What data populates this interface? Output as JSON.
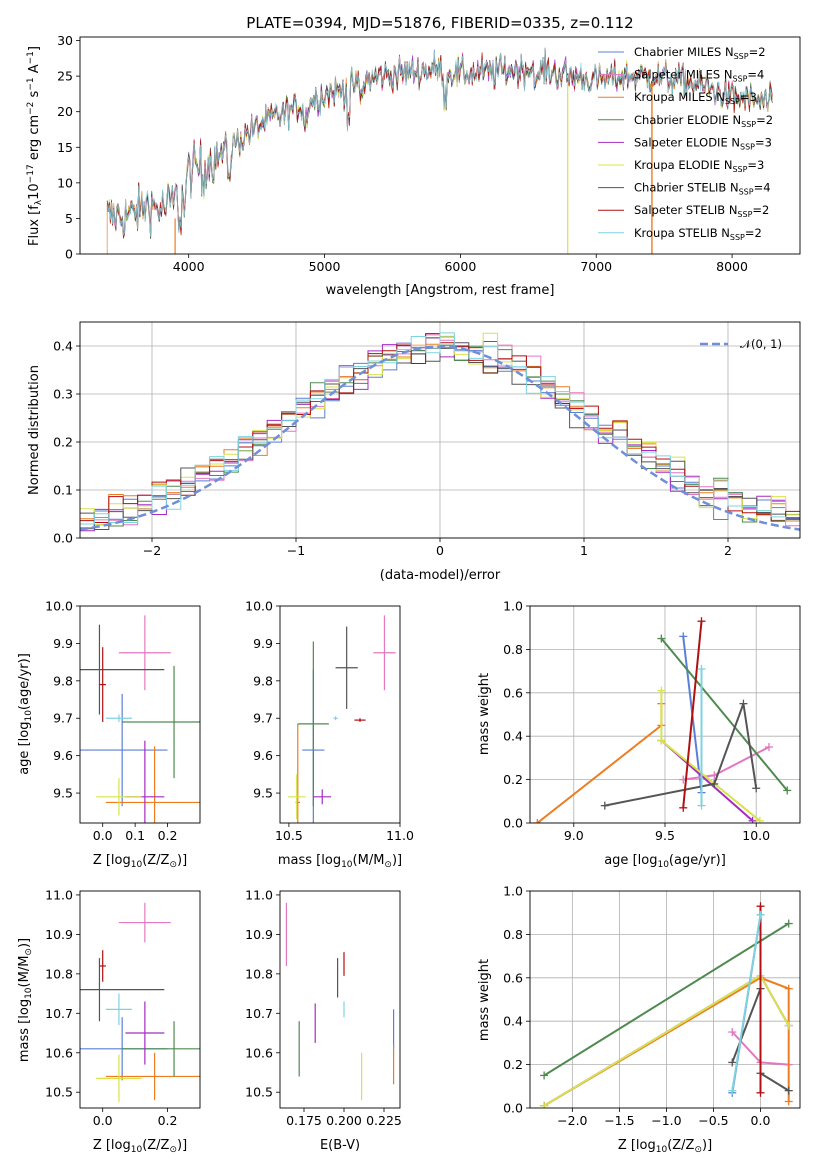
{
  "title": "PLATE=0394, MJD=51876, FIBERID=0335, z=0.112",
  "colors": {
    "Chabrier MILES": "#5b7fd6",
    "Salpeter MILES": "#e377c2",
    "Kroupa MILES": "#ee7d22",
    "Chabrier ELODIE": "#4f8a50",
    "Salpeter ELODIE": "#a52cc2",
    "Kroupa ELODIE": "#d8e34a",
    "Chabrier STELIB": "#555555",
    "Salpeter STELIB": "#b01010",
    "Kroupa STELIB": "#7fd3e0",
    "gaussian": "#6f8fd8"
  },
  "chart_data": [
    {
      "id": "spectrum",
      "type": "line",
      "title": "PLATE=0394, MJD=51876, FIBERID=0335, z=0.112",
      "xlabel": "wavelength [Angstrom, rest frame]",
      "ylabel_parts": [
        "Flux [f",
        "λ",
        "10",
        "−17",
        " erg cm",
        "−2",
        " s",
        "−1",
        " A",
        "−1",
        "]"
      ],
      "xlim": [
        3200,
        8500
      ],
      "ylim": [
        0,
        30.5
      ],
      "xticks": [
        4000,
        5000,
        6000,
        7000,
        8000
      ],
      "yticks": [
        0,
        5,
        10,
        15,
        20,
        25,
        30
      ],
      "continuum": [
        [
          3400,
          5.2
        ],
        [
          3600,
          5.6
        ],
        [
          3700,
          7
        ],
        [
          3800,
          6.2
        ],
        [
          3900,
          7.5
        ],
        [
          4000,
          11.5
        ],
        [
          4200,
          13.5
        ],
        [
          4400,
          16.5
        ],
        [
          4600,
          19
        ],
        [
          4800,
          20.5
        ],
        [
          5000,
          22.5
        ],
        [
          5200,
          23.5
        ],
        [
          5400,
          25
        ],
        [
          5600,
          25.5
        ],
        [
          5800,
          26
        ],
        [
          6000,
          25.3
        ],
        [
          6200,
          25.5
        ],
        [
          6400,
          26
        ],
        [
          6600,
          26
        ],
        [
          6800,
          25
        ],
        [
          7000,
          24.5
        ],
        [
          7200,
          25
        ],
        [
          7400,
          25
        ],
        [
          7600,
          24.5
        ],
        [
          7800,
          23.5
        ],
        [
          8000,
          22
        ],
        [
          8200,
          21.5
        ],
        [
          8300,
          21
        ]
      ],
      "series_names": [
        "Chabrier MILES",
        "Salpeter MILES",
        "Kroupa MILES",
        "Chabrier ELODIE",
        "Salpeter ELODIE",
        "Kroupa ELODIE",
        "Chabrier STELIB",
        "Salpeter STELIB",
        "Kroupa STELIB"
      ],
      "legend": [
        {
          "name": "Chabrier MILES",
          "nssp": "2"
        },
        {
          "name": "Salpeter MILES",
          "nssp": "4"
        },
        {
          "name": "Kroupa MILES",
          "nssp": "3"
        },
        {
          "name": "Chabrier ELODIE",
          "nssp": "2"
        },
        {
          "name": "Salpeter ELODIE",
          "nssp": "3"
        },
        {
          "name": "Kroupa ELODIE",
          "nssp": "3"
        },
        {
          "name": "Chabrier STELIB",
          "nssp": "4"
        },
        {
          "name": "Salpeter STELIB",
          "nssp": "2"
        },
        {
          "name": "Kroupa STELIB",
          "nssp": "2"
        }
      ],
      "legend_label": "N",
      "legend_sub": "SSP",
      "legend_placement": "right"
    },
    {
      "id": "residuals",
      "type": "line",
      "xlabel": "(data-model)/error",
      "ylabel": "Normed distribution",
      "xlim": [
        -2.5,
        2.5
      ],
      "ylim": [
        0,
        0.45
      ],
      "xticks": [
        -2,
        -1,
        0,
        1,
        2
      ],
      "xtick_labels": [
        "−2",
        "−1",
        "0",
        "1",
        "2"
      ],
      "yticks": [
        0,
        0.1,
        0.2,
        0.3,
        0.4
      ],
      "ytick_labels": [
        "0.0",
        "0.1",
        "0.2",
        "0.3",
        "0.4"
      ],
      "bin_width": 0.1,
      "grid": true,
      "legend_label": "𝒩(0, 1)",
      "legend_placement": "top-right"
    },
    {
      "id": "age-vs-Z",
      "type": "scatter",
      "xlabel_parts": [
        "Z [log",
        "10",
        "(Z/Z",
        "⊙",
        ")]"
      ],
      "ylabel_parts": [
        "age  [log",
        "10",
        "(age/yr)]"
      ],
      "xlim": [
        -0.07,
        0.3
      ],
      "ylim": [
        9.42,
        10.0
      ],
      "xticks": [
        0.0,
        0.1,
        0.2
      ],
      "xtick_labels": [
        "0.0",
        "0.1",
        "0.2"
      ],
      "yticks": [
        9.5,
        9.6,
        9.7,
        9.8,
        9.9,
        10.0
      ],
      "ytick_labels": [
        "9.5",
        "9.6",
        "9.7",
        "9.8",
        "9.9",
        "10.0"
      ],
      "points": [
        {
          "s": "Chabrier MILES",
          "x": 0.06,
          "xerr": 0.14,
          "y": 9.615,
          "yerr": 0.15
        },
        {
          "s": "Salpeter MILES",
          "x": 0.13,
          "xerr": 0.08,
          "y": 9.875,
          "yerr": 0.1
        },
        {
          "s": "Kroupa MILES",
          "x": 0.16,
          "xerr": 0.15,
          "y": 9.475,
          "yerr": 0.15
        },
        {
          "s": "Chabrier ELODIE",
          "x": 0.22,
          "xerr": 0.16,
          "y": 9.69,
          "yerr": 0.15
        },
        {
          "s": "Salpeter ELODIE",
          "x": 0.13,
          "xerr": 0.06,
          "y": 9.49,
          "yerr": 0.15
        },
        {
          "s": "Kroupa ELODIE",
          "x": 0.05,
          "xerr": 0.07,
          "y": 9.49,
          "yerr": 0.05
        },
        {
          "s": "Chabrier STELIB",
          "x": -0.01,
          "xerr": 0.2,
          "y": 9.83,
          "yerr": 0.12
        },
        {
          "s": "Salpeter STELIB",
          "x": 0.0,
          "xerr": 0.01,
          "y": 9.79,
          "yerr": 0.1
        },
        {
          "s": "Kroupa STELIB",
          "x": 0.05,
          "xerr": 0.04,
          "y": 9.7,
          "yerr": 0.01
        }
      ]
    },
    {
      "id": "age-vs-mass",
      "type": "scatter",
      "xlabel_parts": [
        "mass [log",
        "10",
        "(M/M",
        "⊙",
        ")]"
      ],
      "xlim": [
        10.46,
        11.0
      ],
      "ylim": [
        9.42,
        10.0
      ],
      "xticks": [
        10.5,
        11.0
      ],
      "xtick_labels": [
        "10.5",
        "11.0"
      ],
      "yticks": [
        9.5,
        9.6,
        9.7,
        9.8,
        9.9,
        10.0
      ],
      "ytick_labels": [
        "9.5",
        "9.6",
        "9.7",
        "9.8",
        "9.9",
        "10.0"
      ],
      "points": [
        {
          "s": "Chabrier MILES",
          "x": 10.61,
          "xerr": 0.05,
          "y": 9.615,
          "yerr": 0.215
        },
        {
          "s": "Salpeter MILES",
          "x": 10.93,
          "xerr": 0.05,
          "y": 9.875,
          "yerr": 0.1
        },
        {
          "s": "Kroupa MILES",
          "x": 10.54,
          "xerr": 0.01,
          "y": 9.475,
          "yerr": 0.21
        },
        {
          "s": "Chabrier ELODIE",
          "x": 10.61,
          "xerr": 0.07,
          "y": 9.685,
          "yerr": 0.22
        },
        {
          "s": "Salpeter ELODIE",
          "x": 10.65,
          "xerr": 0.04,
          "y": 9.49,
          "yerr": 0.02
        },
        {
          "s": "Kroupa ELODIE",
          "x": 10.535,
          "xerr": 0.04,
          "y": 9.49,
          "yerr": 0.06
        },
        {
          "s": "Chabrier STELIB",
          "x": 10.76,
          "xerr": 0.05,
          "y": 9.835,
          "yerr": 0.11
        },
        {
          "s": "Salpeter STELIB",
          "x": 10.82,
          "xerr": 0.025,
          "y": 9.695,
          "yerr": 0.005
        },
        {
          "s": "Kroupa STELIB",
          "x": 10.71,
          "xerr": 0.01,
          "y": 9.7,
          "yerr": 0.005
        }
      ]
    },
    {
      "id": "weight-vs-age",
      "type": "line",
      "xlabel_parts": [
        "age  [log",
        "10",
        "(age/yr)]"
      ],
      "ylabel": "mass weight",
      "xlim": [
        8.76,
        10.24
      ],
      "ylim": [
        0,
        1.0
      ],
      "xticks": [
        9.0,
        9.5,
        10.0
      ],
      "xtick_labels": [
        "9.0",
        "9.5",
        "10.0"
      ],
      "yticks": [
        0,
        0.2,
        0.4,
        0.6,
        0.8,
        1.0
      ],
      "ytick_labels": [
        "0.0",
        "0.2",
        "0.4",
        "0.6",
        "0.8",
        "1.0"
      ],
      "grid": true,
      "series": [
        {
          "name": "Chabrier MILES",
          "x": [
            9.6,
            9.7
          ],
          "y": [
            0.86,
            0.14
          ]
        },
        {
          "name": "Salpeter MILES",
          "x": [
            9.6,
            9.77,
            10.07
          ],
          "y": [
            0.2,
            0.22,
            0.35
          ]
        },
        {
          "name": "Kroupa MILES",
          "x": [
            8.8,
            9.48,
            9.48
          ],
          "y": [
            0.0,
            0.45,
            0.55
          ]
        },
        {
          "name": "Chabrier ELODIE",
          "x": [
            10.17,
            9.48
          ],
          "y": [
            0.15,
            0.85
          ]
        },
        {
          "name": "Salpeter ELODIE",
          "x": [
            9.48,
            9.98
          ],
          "y": [
            0.38,
            0.01
          ]
        },
        {
          "name": "Kroupa ELODIE",
          "x": [
            9.48,
            9.48,
            10.02
          ],
          "y": [
            0.61,
            0.38,
            0.01
          ]
        },
        {
          "name": "Chabrier STELIB",
          "x": [
            9.17,
            9.77,
            9.93,
            10.0
          ],
          "y": [
            0.08,
            0.18,
            0.55,
            0.16
          ]
        },
        {
          "name": "Salpeter STELIB",
          "x": [
            9.6,
            9.7
          ],
          "y": [
            0.07,
            0.93
          ]
        },
        {
          "name": "Kroupa STELIB",
          "x": [
            9.7,
            9.7
          ],
          "y": [
            0.71,
            0.08
          ]
        }
      ]
    },
    {
      "id": "mass-vs-Z",
      "type": "scatter",
      "xlabel_parts": [
        "Z [log",
        "10",
        "(Z/Z",
        "⊙",
        ")]"
      ],
      "ylabel_parts": [
        "mass [log",
        "10",
        "(M/M",
        "⊙",
        ")]"
      ],
      "xlim": [
        -0.07,
        0.3
      ],
      "ylim": [
        10.46,
        11.01
      ],
      "xticks": [
        0.0,
        0.2
      ],
      "xtick_labels": [
        "0.0",
        "0.2"
      ],
      "yticks": [
        10.5,
        10.6,
        10.7,
        10.8,
        10.9,
        11.0
      ],
      "ytick_labels": [
        "10.5",
        "10.6",
        "10.7",
        "10.8",
        "10.9",
        "11.0"
      ],
      "points": [
        {
          "s": "Chabrier MILES",
          "x": 0.06,
          "xerr": 0.14,
          "y": 10.61,
          "yerr": 0.08
        },
        {
          "s": "Salpeter MILES",
          "x": 0.13,
          "xerr": 0.08,
          "y": 10.93,
          "yerr": 0.05
        },
        {
          "s": "Kroupa MILES",
          "x": 0.16,
          "xerr": 0.15,
          "y": 10.54,
          "yerr": 0.06
        },
        {
          "s": "Chabrier ELODIE",
          "x": 0.22,
          "xerr": 0.16,
          "y": 10.61,
          "yerr": 0.07
        },
        {
          "s": "Salpeter ELODIE",
          "x": 0.13,
          "xerr": 0.06,
          "y": 10.65,
          "yerr": 0.08
        },
        {
          "s": "Kroupa ELODIE",
          "x": 0.05,
          "xerr": 0.07,
          "y": 10.535,
          "yerr": 0.06
        },
        {
          "s": "Chabrier STELIB",
          "x": -0.01,
          "xerr": 0.2,
          "y": 10.76,
          "yerr": 0.08
        },
        {
          "s": "Salpeter STELIB",
          "x": 0.0,
          "xerr": 0.01,
          "y": 10.82,
          "yerr": 0.04
        },
        {
          "s": "Kroupa STELIB",
          "x": 0.05,
          "xerr": 0.04,
          "y": 10.71,
          "yerr": 0.04
        }
      ]
    },
    {
      "id": "mass-vs-ebv",
      "type": "scatter",
      "xlabel": "E(B-V)",
      "xlim": [
        0.16,
        0.235
      ],
      "ylim": [
        10.46,
        11.01
      ],
      "xticks": [
        0.175,
        0.2,
        0.225
      ],
      "xtick_labels": [
        "0.175",
        "0.200",
        "0.225"
      ],
      "yticks": [
        10.5,
        10.6,
        10.7,
        10.8,
        10.9,
        11.0
      ],
      "ytick_labels": [
        "10.5",
        "10.6",
        "10.7",
        "10.8",
        "10.9",
        "11.0"
      ],
      "points": [
        {
          "s": "Chabrier MILES",
          "x": 0.231,
          "xerr": 0,
          "y": 10.66,
          "yerr": 0.05
        },
        {
          "s": "Salpeter MILES",
          "x": 0.164,
          "xerr": 0,
          "y": 10.9,
          "yerr": 0.08
        },
        {
          "s": "Kroupa MILES",
          "x": 0.231,
          "xerr": 0,
          "y": 10.57,
          "yerr": 0.05
        },
        {
          "s": "Chabrier ELODIE",
          "x": 0.172,
          "xerr": 0,
          "y": 10.61,
          "yerr": 0.07
        },
        {
          "s": "Salpeter ELODIE",
          "x": 0.182,
          "xerr": 0,
          "y": 10.675,
          "yerr": 0.05
        },
        {
          "s": "Kroupa ELODIE",
          "x": 0.211,
          "xerr": 0,
          "y": 10.54,
          "yerr": 0.06
        },
        {
          "s": "Chabrier STELIB",
          "x": 0.196,
          "xerr": 0,
          "y": 10.79,
          "yerr": 0.05
        },
        {
          "s": "Salpeter STELIB",
          "x": 0.2,
          "xerr": 0,
          "y": 10.825,
          "yerr": 0.03
        },
        {
          "s": "Kroupa STELIB",
          "x": 0.2,
          "xerr": 0,
          "y": 10.71,
          "yerr": 0.02
        }
      ]
    },
    {
      "id": "weight-vs-Z",
      "type": "line",
      "xlabel_parts": [
        "Z [log",
        "10",
        "(Z/Z",
        "⊙",
        ")]"
      ],
      "ylabel": "mass weight",
      "xlim": [
        -2.45,
        0.42
      ],
      "ylim": [
        0,
        1.0
      ],
      "xticks": [
        -2.0,
        -1.5,
        -1.0,
        -0.5,
        0.0
      ],
      "xtick_labels": [
        "−2.0",
        "−1.5",
        "−1.0",
        "−0.5",
        "0.0"
      ],
      "yticks": [
        0,
        0.2,
        0.4,
        0.6,
        0.8,
        1.0
      ],
      "ytick_labels": [
        "0.0",
        "0.2",
        "0.4",
        "0.6",
        "0.8",
        "1.0"
      ],
      "grid": true,
      "series": [
        {
          "name": "Chabrier MILES",
          "x": [
            -0.3,
            0.0
          ],
          "y": [
            0.07,
            0.89
          ]
        },
        {
          "name": "Salpeter MILES",
          "x": [
            -0.3,
            0.0,
            0.3
          ],
          "y": [
            0.35,
            0.21,
            0.2
          ]
        },
        {
          "name": "Kroupa MILES",
          "x": [
            -2.3,
            0.0,
            0.3,
            0.3
          ],
          "y": [
            0.01,
            0.6,
            0.55,
            0.03
          ]
        },
        {
          "name": "Chabrier ELODIE",
          "x": [
            -2.3,
            0.3
          ],
          "y": [
            0.15,
            0.85
          ]
        },
        {
          "name": "Salpeter ELODIE",
          "x": [
            -2.3,
            0.0,
            0.3
          ],
          "y": [
            0.01,
            0.61,
            0.38
          ]
        },
        {
          "name": "Kroupa ELODIE",
          "x": [
            -2.3,
            0.0,
            0.3
          ],
          "y": [
            0.01,
            0.61,
            0.38
          ]
        },
        {
          "name": "Chabrier STELIB",
          "x": [
            -0.3,
            0.0,
            0.0,
            0.3
          ],
          "y": [
            0.21,
            0.55,
            0.16,
            0.08
          ]
        },
        {
          "name": "Salpeter STELIB",
          "x": [
            0.0,
            0.0
          ],
          "y": [
            0.93,
            0.07
          ]
        },
        {
          "name": "Kroupa STELIB",
          "x": [
            -0.3,
            0.0
          ],
          "y": [
            0.08,
            0.89
          ]
        }
      ]
    }
  ]
}
